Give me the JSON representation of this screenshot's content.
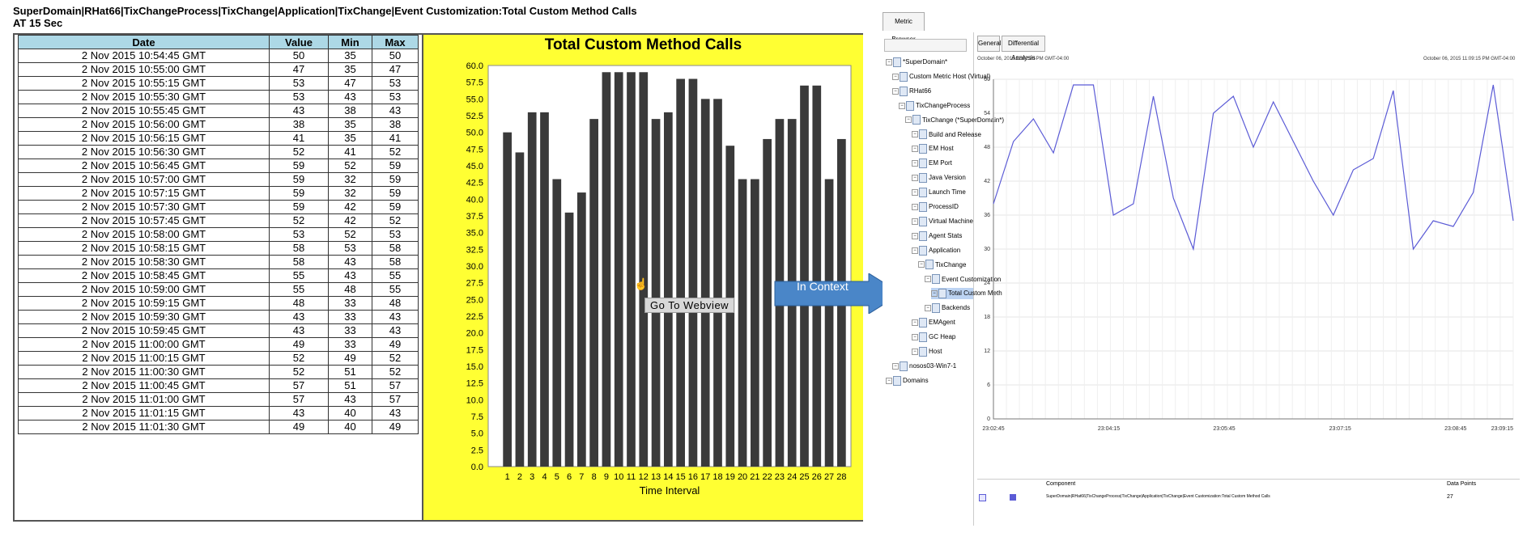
{
  "header": {
    "line1": "SuperDomain|RHat66|TixChangeProcess|TixChange|Application|TixChange|Event Customization:Total Custom Method Calls",
    "line2": "AT 15 Sec"
  },
  "table": {
    "columns": [
      "Date",
      "Value",
      "Min",
      "Max"
    ],
    "rows": [
      [
        "2 Nov 2015 10:54:45 GMT",
        "50",
        "35",
        "50"
      ],
      [
        "2 Nov 2015 10:55:00 GMT",
        "47",
        "35",
        "47"
      ],
      [
        "2 Nov 2015 10:55:15 GMT",
        "53",
        "47",
        "53"
      ],
      [
        "2 Nov 2015 10:55:30 GMT",
        "53",
        "43",
        "53"
      ],
      [
        "2 Nov 2015 10:55:45 GMT",
        "43",
        "38",
        "43"
      ],
      [
        "2 Nov 2015 10:56:00 GMT",
        "38",
        "35",
        "38"
      ],
      [
        "2 Nov 2015 10:56:15 GMT",
        "41",
        "35",
        "41"
      ],
      [
        "2 Nov 2015 10:56:30 GMT",
        "52",
        "41",
        "52"
      ],
      [
        "2 Nov 2015 10:56:45 GMT",
        "59",
        "52",
        "59"
      ],
      [
        "2 Nov 2015 10:57:00 GMT",
        "59",
        "32",
        "59"
      ],
      [
        "2 Nov 2015 10:57:15 GMT",
        "59",
        "32",
        "59"
      ],
      [
        "2 Nov 2015 10:57:30 GMT",
        "59",
        "42",
        "59"
      ],
      [
        "2 Nov 2015 10:57:45 GMT",
        "52",
        "42",
        "52"
      ],
      [
        "2 Nov 2015 10:58:00 GMT",
        "53",
        "52",
        "53"
      ],
      [
        "2 Nov 2015 10:58:15 GMT",
        "58",
        "53",
        "58"
      ],
      [
        "2 Nov 2015 10:58:30 GMT",
        "58",
        "43",
        "58"
      ],
      [
        "2 Nov 2015 10:58:45 GMT",
        "55",
        "43",
        "55"
      ],
      [
        "2 Nov 2015 10:59:00 GMT",
        "55",
        "48",
        "55"
      ],
      [
        "2 Nov 2015 10:59:15 GMT",
        "48",
        "33",
        "48"
      ],
      [
        "2 Nov 2015 10:59:30 GMT",
        "43",
        "33",
        "43"
      ],
      [
        "2 Nov 2015 10:59:45 GMT",
        "43",
        "33",
        "43"
      ],
      [
        "2 Nov 2015 11:00:00 GMT",
        "49",
        "33",
        "49"
      ],
      [
        "2 Nov 2015 11:00:15 GMT",
        "52",
        "49",
        "52"
      ],
      [
        "2 Nov 2015 11:00:30 GMT",
        "52",
        "51",
        "52"
      ],
      [
        "2 Nov 2015 11:00:45 GMT",
        "57",
        "51",
        "57"
      ],
      [
        "2 Nov 2015 11:01:00 GMT",
        "57",
        "43",
        "57"
      ],
      [
        "2 Nov 2015 11:01:15 GMT",
        "43",
        "40",
        "43"
      ],
      [
        "2 Nov 2015 11:01:30 GMT",
        "49",
        "40",
        "49"
      ]
    ]
  },
  "chart_data": [
    {
      "type": "bar",
      "title": "Total Custom Method Calls",
      "xlabel": "Time Interval",
      "ylabel": "",
      "categories": [
        "1",
        "2",
        "3",
        "4",
        "5",
        "6",
        "7",
        "8",
        "9",
        "10",
        "11",
        "12",
        "13",
        "14",
        "15",
        "16",
        "17",
        "18",
        "19",
        "20",
        "21",
        "22",
        "23",
        "24",
        "25",
        "26",
        "27",
        "28"
      ],
      "values": [
        50,
        47,
        53,
        53,
        43,
        38,
        41,
        52,
        59,
        59,
        59,
        59,
        52,
        53,
        58,
        58,
        55,
        55,
        48,
        43,
        43,
        49,
        52,
        52,
        57,
        57,
        43,
        49
      ],
      "ylim": [
        0,
        60
      ],
      "yticks": [
        "0.0",
        "2.5",
        "5.0",
        "7.5",
        "10.0",
        "12.5",
        "15.0",
        "17.5",
        "20.0",
        "22.5",
        "25.0",
        "27.5",
        "30.0",
        "32.5",
        "35.0",
        "37.5",
        "40.0",
        "42.5",
        "45.0",
        "47.5",
        "50.0",
        "52.5",
        "55.0",
        "57.5",
        "60.0"
      ],
      "bar_color": "#3a3a3a",
      "background": "#ffff33",
      "grid": false,
      "legend": "none"
    },
    {
      "type": "line",
      "title": "",
      "xlabel": "",
      "ylabel": "",
      "x_ticks": [
        "23:02:45",
        "23:04:15",
        "23:05:45",
        "23:07:15",
        "23:08:45",
        "23:09:15"
      ],
      "yticks": [
        "0",
        "6",
        "12",
        "18",
        "24",
        "30",
        "36",
        "42",
        "48",
        "54",
        "60"
      ],
      "ylim": [
        0,
        60
      ],
      "values": [
        38,
        49,
        53,
        47,
        59,
        59,
        36,
        38,
        57,
        39,
        30,
        54,
        57,
        48,
        56,
        49,
        42,
        36,
        44,
        46,
        58,
        30,
        35,
        34,
        40,
        59,
        35
      ],
      "line_color": "#5b5bd6",
      "grid": true
    }
  ],
  "tooltip": "Go To Webview",
  "in_context_label": "In Context",
  "metric_browser": {
    "tab_label": "Metric Browser",
    "tree": [
      {
        "label": "*SuperDomain*",
        "depth": 0,
        "selected": false
      },
      {
        "label": "Custom Metric Host (Virtual)",
        "depth": 1,
        "selected": false
      },
      {
        "label": "RHat66",
        "depth": 1,
        "selected": false
      },
      {
        "label": "TixChangeProcess",
        "depth": 2,
        "selected": false
      },
      {
        "label": "TixChange (*SuperDomain*)",
        "depth": 3,
        "selected": false
      },
      {
        "label": "Build and Release",
        "depth": 4,
        "selected": false
      },
      {
        "label": "EM Host",
        "depth": 4,
        "selected": false
      },
      {
        "label": "EM Port",
        "depth": 4,
        "selected": false
      },
      {
        "label": "Java Version",
        "depth": 4,
        "selected": false
      },
      {
        "label": "Launch Time",
        "depth": 4,
        "selected": false
      },
      {
        "label": "ProcessID",
        "depth": 4,
        "selected": false
      },
      {
        "label": "Virtual Machine",
        "depth": 4,
        "selected": false
      },
      {
        "label": "Agent Stats",
        "depth": 4,
        "selected": false
      },
      {
        "label": "Application",
        "depth": 4,
        "selected": false
      },
      {
        "label": "TixChange",
        "depth": 5,
        "selected": false
      },
      {
        "label": "Event Customization",
        "depth": 6,
        "selected": false
      },
      {
        "label": "Total Custom Meth",
        "depth": 7,
        "selected": true
      },
      {
        "label": "Backends",
        "depth": 6,
        "selected": false
      },
      {
        "label": "EMAgent",
        "depth": 4,
        "selected": false
      },
      {
        "label": "GC Heap",
        "depth": 4,
        "selected": false
      },
      {
        "label": "Host",
        "depth": 4,
        "selected": false
      },
      {
        "label": "nosos03-Win7-1",
        "depth": 1,
        "selected": false
      },
      {
        "label": "Domains",
        "depth": 0,
        "selected": false
      }
    ],
    "tabs": [
      "General",
      "Differential Analysis"
    ],
    "start_date": "October 06, 2015 11:02:30 PM GMT-04:00",
    "end_date": "October 06, 2015 11:09:15 PM GMT-04:00",
    "legend": {
      "col_component": "Component",
      "col_points": "Data Points",
      "component": "SuperDomain|RHat66|TixChangeProcess|TixChange|Application|TixChange|Event Customization:Total Custom Method Calls",
      "points": "27",
      "swatch_color": "#5b5bd6"
    }
  }
}
